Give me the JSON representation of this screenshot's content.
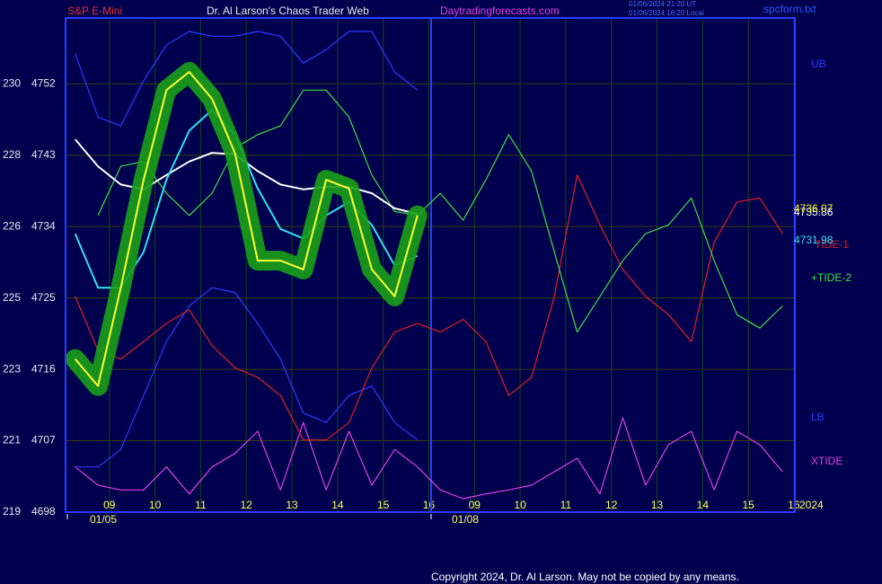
{
  "chart_data": {
    "type": "line",
    "title": "Dr. Al Larson's Chaos Trader Web",
    "symbol": "S&P E-Mini",
    "site": "Daytradingforecasts.com",
    "timestamps": [
      "01/06/2024 21:20 UT",
      "01/06/2024 16:20 Local"
    ],
    "file": "spcform.txt",
    "year": "2024",
    "copyright": "Copyright 2024, Dr. Al Larson. May not be copied by any means.",
    "day_labels": [
      "01/05",
      "01/08"
    ],
    "xlim": [
      -0.96,
      15.02
    ],
    "ylim": [
      4698,
      4760.3
    ],
    "yticks": [
      4698,
      4707,
      4716,
      4725,
      4734,
      4743,
      4752
    ],
    "y_secondary_labels": [
      "219",
      "221",
      "223",
      "225",
      "226",
      "228",
      "230"
    ],
    "xticks": [
      {
        "value": 0,
        "label": "09"
      },
      {
        "value": 1,
        "label": "10"
      },
      {
        "value": 2,
        "label": "11"
      },
      {
        "value": 3,
        "label": "12"
      },
      {
        "value": 4,
        "label": "13"
      },
      {
        "value": 5,
        "label": "14"
      },
      {
        "value": 6,
        "label": "15"
      },
      {
        "value": 7,
        "label": "16"
      },
      {
        "value": 8,
        "label": "09"
      },
      {
        "value": 9,
        "label": "10"
      },
      {
        "value": 10,
        "label": "11"
      },
      {
        "value": 11,
        "label": "12"
      },
      {
        "value": 12,
        "label": "13"
      },
      {
        "value": 13,
        "label": "14"
      },
      {
        "value": 14,
        "label": "15"
      },
      {
        "value": 15,
        "label": "16"
      }
    ],
    "grid": true,
    "x": [
      -0.75,
      -0.25,
      0.25,
      0.75,
      1.25,
      1.75,
      2.25,
      2.75,
      3.25,
      3.75,
      4.25,
      4.75,
      5.25,
      5.75,
      6.25,
      6.75,
      7.25,
      7.75,
      8.25,
      8.75,
      9.25,
      9.75,
      10.25,
      10.75,
      11.25,
      11.75,
      12.25,
      12.75,
      13.25,
      13.75,
      14.25,
      14.75
    ],
    "series": [
      {
        "name": "UB",
        "color": "#2a3cff",
        "values": [
          4755.8,
          4747.8,
          4746.7,
          4752.4,
          4756.9,
          4758.6,
          4758.0,
          4758.0,
          4758.6,
          4758.0,
          4754.6,
          4756.3,
          4758.6,
          4758.6,
          4753.5,
          4751.2,
          null,
          null,
          null,
          null,
          null,
          null,
          null,
          null,
          null,
          null,
          null,
          null,
          null,
          null,
          null,
          null
        ]
      },
      {
        "name": "LB",
        "color": "#2a3cff",
        "values": [
          4703.7,
          4703.7,
          4705.9,
          4712.7,
          4719.5,
          4724.0,
          4726.3,
          4725.7,
          4721.8,
          4717.3,
          4710.5,
          4709.3,
          4712.7,
          4713.9,
          4709.3,
          4707.1,
          null,
          null,
          null,
          null,
          null,
          null,
          null,
          null,
          null,
          null,
          null,
          null,
          null,
          null,
          null,
          null
        ]
      },
      {
        "name": "XTIDE",
        "color": "#e040e0",
        "values": [
          4703.7,
          4701.4,
          4700.8,
          4700.8,
          4703.7,
          4700.3,
          4703.7,
          4705.4,
          4708.2,
          4700.8,
          4709.3,
          4700.8,
          4708.2,
          4701.4,
          4705.9,
          4703.7,
          4700.8,
          4699.7,
          4700.3,
          4700.8,
          4701.4,
          4703.1,
          4704.8,
          4700.3,
          4709.9,
          4701.4,
          4706.5,
          4708.2,
          4700.8,
          4708.2,
          4706.5,
          4703.1
        ]
      },
      {
        "name": "TIDE-1",
        "color": "#e02020",
        "values": [
          4725.2,
          4718.4,
          4717.3,
          4719.5,
          4721.8,
          4723.5,
          4719.0,
          4716.2,
          4715.0,
          4712.7,
          4707.1,
          4707.1,
          4709.3,
          4716.2,
          4720.7,
          4721.8,
          4720.7,
          4722.3,
          4719.5,
          4712.7,
          4715.0,
          4725.2,
          4740.5,
          4734.2,
          4728.6,
          4725.2,
          4722.9,
          4719.5,
          4732.0,
          4737.1,
          4737.6,
          4733.1
        ]
      },
      {
        "name": "+TIDE-2",
        "color": "#40e040",
        "values": [
          null,
          4735.4,
          4741.6,
          4742.2,
          4738.2,
          4735.4,
          4738.2,
          4743.9,
          4745.6,
          4746.7,
          4751.2,
          4751.2,
          4747.8,
          4740.5,
          4735.9,
          4735.4,
          4738.2,
          4734.8,
          4739.9,
          4745.6,
          4741.0,
          4730.8,
          4720.7,
          4725.2,
          4729.7,
          4733.1,
          4734.2,
          4737.6,
          4729.7,
          4722.9,
          4721.2,
          4724.0
        ]
      },
      {
        "color": "#ffffff",
        "end_label": "4735.86",
        "values": [
          4745.0,
          4741.6,
          4739.3,
          4738.7,
          4740.5,
          4742.2,
          4743.3,
          4743.1,
          4741.0,
          4739.3,
          4738.7,
          4739.0,
          4739.0,
          4738.2,
          4736.3,
          4735.6,
          null,
          null,
          null,
          null,
          null,
          null,
          null,
          null,
          null,
          null,
          null,
          null,
          null,
          null,
          null,
          null
        ]
      },
      {
        "color": "#30e0f0",
        "end_label": "4731.98",
        "values": [
          4733.1,
          4726.3,
          4726.3,
          4730.8,
          4739.9,
          4746.1,
          4748.7,
          4745.6,
          4738.8,
          4733.7,
          4732.5,
          4735.4,
          4737.1,
          4734.2,
          4729.1,
          4730.3,
          null,
          null,
          null,
          null,
          null,
          null,
          null,
          null,
          null,
          null,
          null,
          null,
          null,
          null,
          null,
          null
        ]
      },
      {
        "color": "#ffff30",
        "end_label": "4736.07",
        "values": [
          4717.3,
          4713.9,
          4726.3,
          4739.9,
          4751.2,
          4753.5,
          4750.1,
          4743.3,
          4729.7,
          4729.7,
          4728.6,
          4739.9,
          4738.8,
          4728.6,
          4725.2,
          4735.4,
          null,
          null,
          null,
          null,
          null,
          null,
          null,
          null,
          null,
          null,
          null,
          null,
          null,
          null,
          null,
          null
        ]
      }
    ]
  }
}
